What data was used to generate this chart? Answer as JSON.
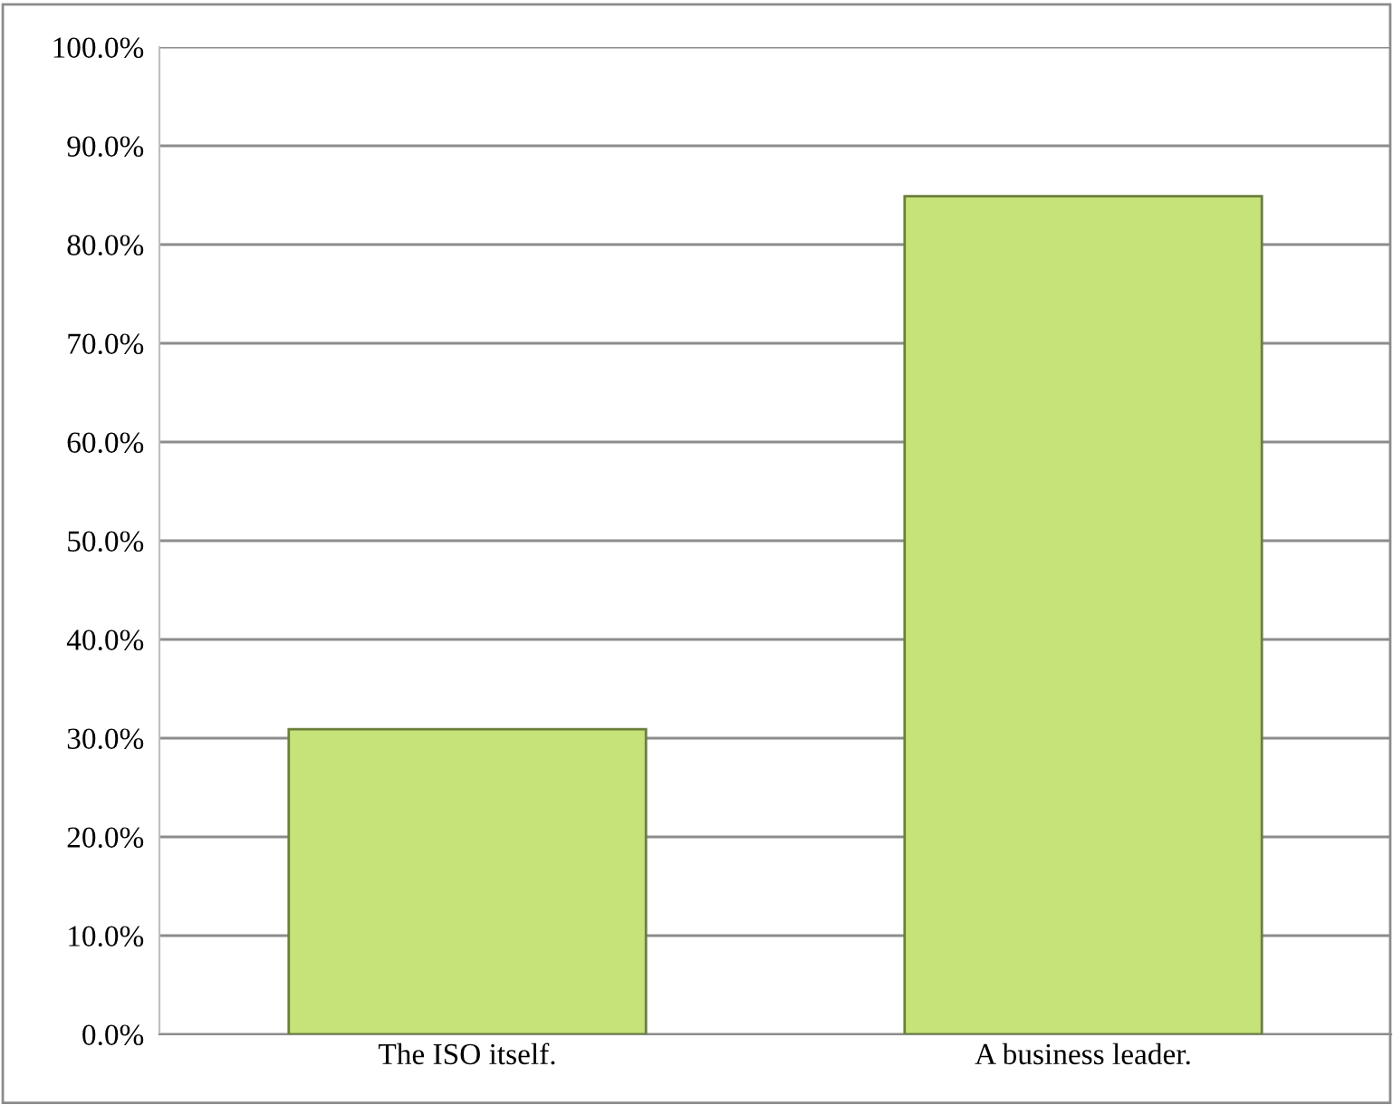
{
  "chart_data": {
    "type": "bar",
    "categories": [
      "The ISO itself.",
      "A business leader."
    ],
    "values": [
      30.9,
      84.9
    ],
    "color": "#c6e37a",
    "ylim": [
      0,
      100
    ],
    "yticks": [
      {
        "value": 0,
        "label": "0.0%"
      },
      {
        "value": 10,
        "label": "10.0%"
      },
      {
        "value": 20,
        "label": "20.0%"
      },
      {
        "value": 30,
        "label": "30.0%"
      },
      {
        "value": 40,
        "label": "40.0%"
      },
      {
        "value": 50,
        "label": "50.0%"
      },
      {
        "value": 60,
        "label": "60.0%"
      },
      {
        "value": 70,
        "label": "70.0%"
      },
      {
        "value": 80,
        "label": "80.0%"
      },
      {
        "value": 90,
        "label": "90.0%"
      },
      {
        "value": 100,
        "label": "100.0%"
      }
    ],
    "grid": "y",
    "legend": false
  }
}
